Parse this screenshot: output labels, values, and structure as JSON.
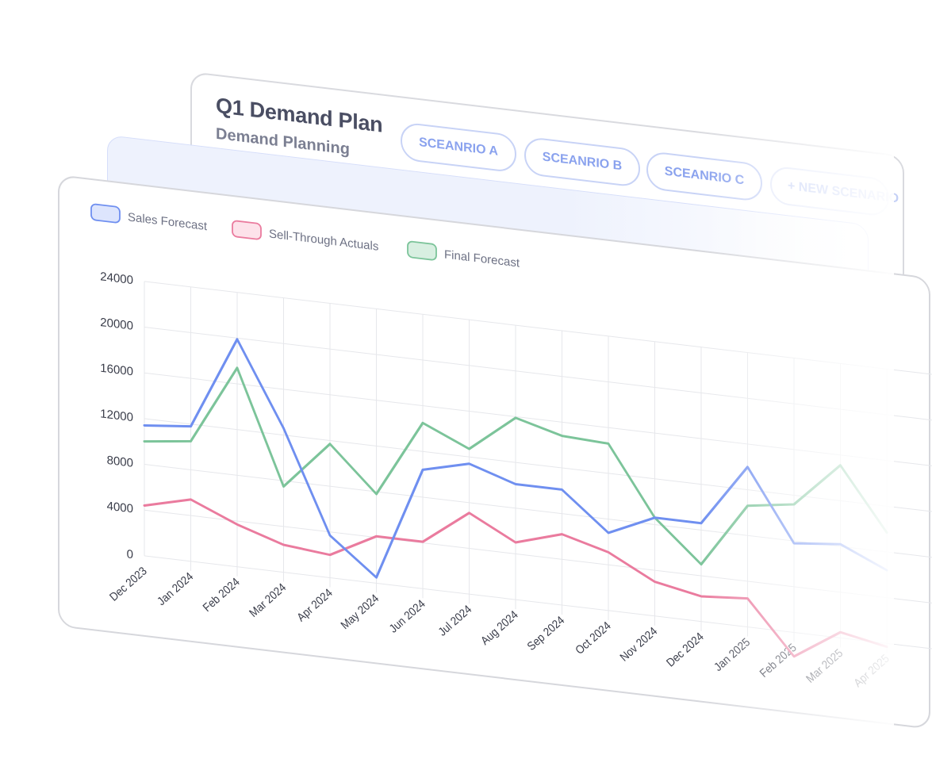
{
  "plan": {
    "title": "Q1 Demand Plan",
    "subtitle": "Demand Planning",
    "scenarios": [
      "SCEANRIO A",
      "SCEANRIO B",
      "SCEANRIO C"
    ],
    "new_scenario_label": "+ NEW SCENARIO"
  },
  "colors": {
    "sales_forecast": "#6f8ff0",
    "sell_through": "#ea7b9e",
    "final_forecast": "#7cc49a"
  },
  "chart_data": {
    "type": "line",
    "categories": [
      "Dec 2023",
      "Jan 2024",
      "Feb 2024",
      "Mar 2024",
      "Apr 2024",
      "May 2024",
      "Jun 2024",
      "Jul 2024",
      "Aug 2024",
      "Sep 2024",
      "Oct 2024",
      "Nov 2024",
      "Dec 2024",
      "Jan 2025",
      "Feb 2025",
      "Mar 2025",
      "Apr 2025"
    ],
    "series": [
      {
        "name": "Sales Forecast",
        "values": [
          11400,
          11800,
          19900,
          12600,
          3700,
          500,
          10400,
          11400,
          10100,
          10100,
          6800,
          8600,
          8600,
          14000,
          7800,
          8200,
          6400
        ]
      },
      {
        "name": "Sell-Through Actuals",
        "values": [
          4400,
          5400,
          3700,
          2400,
          2000,
          4100,
          4100,
          7100,
          5000,
          6200,
          5100,
          3000,
          2200,
          2500,
          -2100,
          500,
          -300
        ]
      },
      {
        "name": "Final Forecast",
        "values": [
          10000,
          10500,
          17400,
          7500,
          11700,
          7800,
          14500,
          12700,
          15900,
          14800,
          14600,
          8600,
          5000,
          10600,
          11200,
          15100,
          9700
        ]
      }
    ],
    "y_ticks": [
      "0",
      "4000",
      "8000",
      "12000",
      "16000",
      "20000",
      "24000"
    ],
    "ylim": [
      0,
      24000
    ],
    "legend_position": "top-left",
    "grid": true
  }
}
